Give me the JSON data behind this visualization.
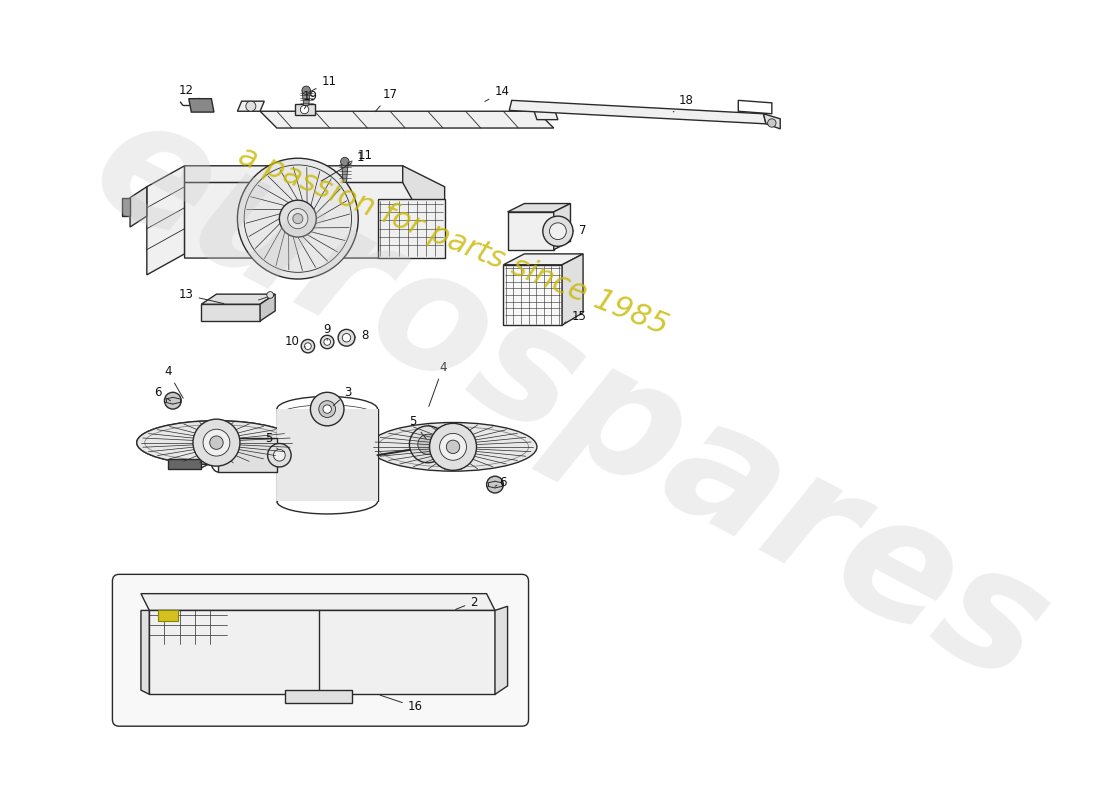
{
  "background_color": "#ffffff",
  "line_color": "#2a2a2a",
  "watermark_text1": "eurospares",
  "watermark_text2": "a passion for parts since 1985",
  "watermark_color1": "#c8c8c8",
  "watermark_color2": "#c8b800",
  "label_fontsize": 8.5,
  "label_color": "#111111",
  "lw_main": 1.0,
  "lw_thin": 0.6,
  "fill_light": "#f0f0f0",
  "fill_mid": "#e0e0e0",
  "fill_dark": "#c8c8c8"
}
